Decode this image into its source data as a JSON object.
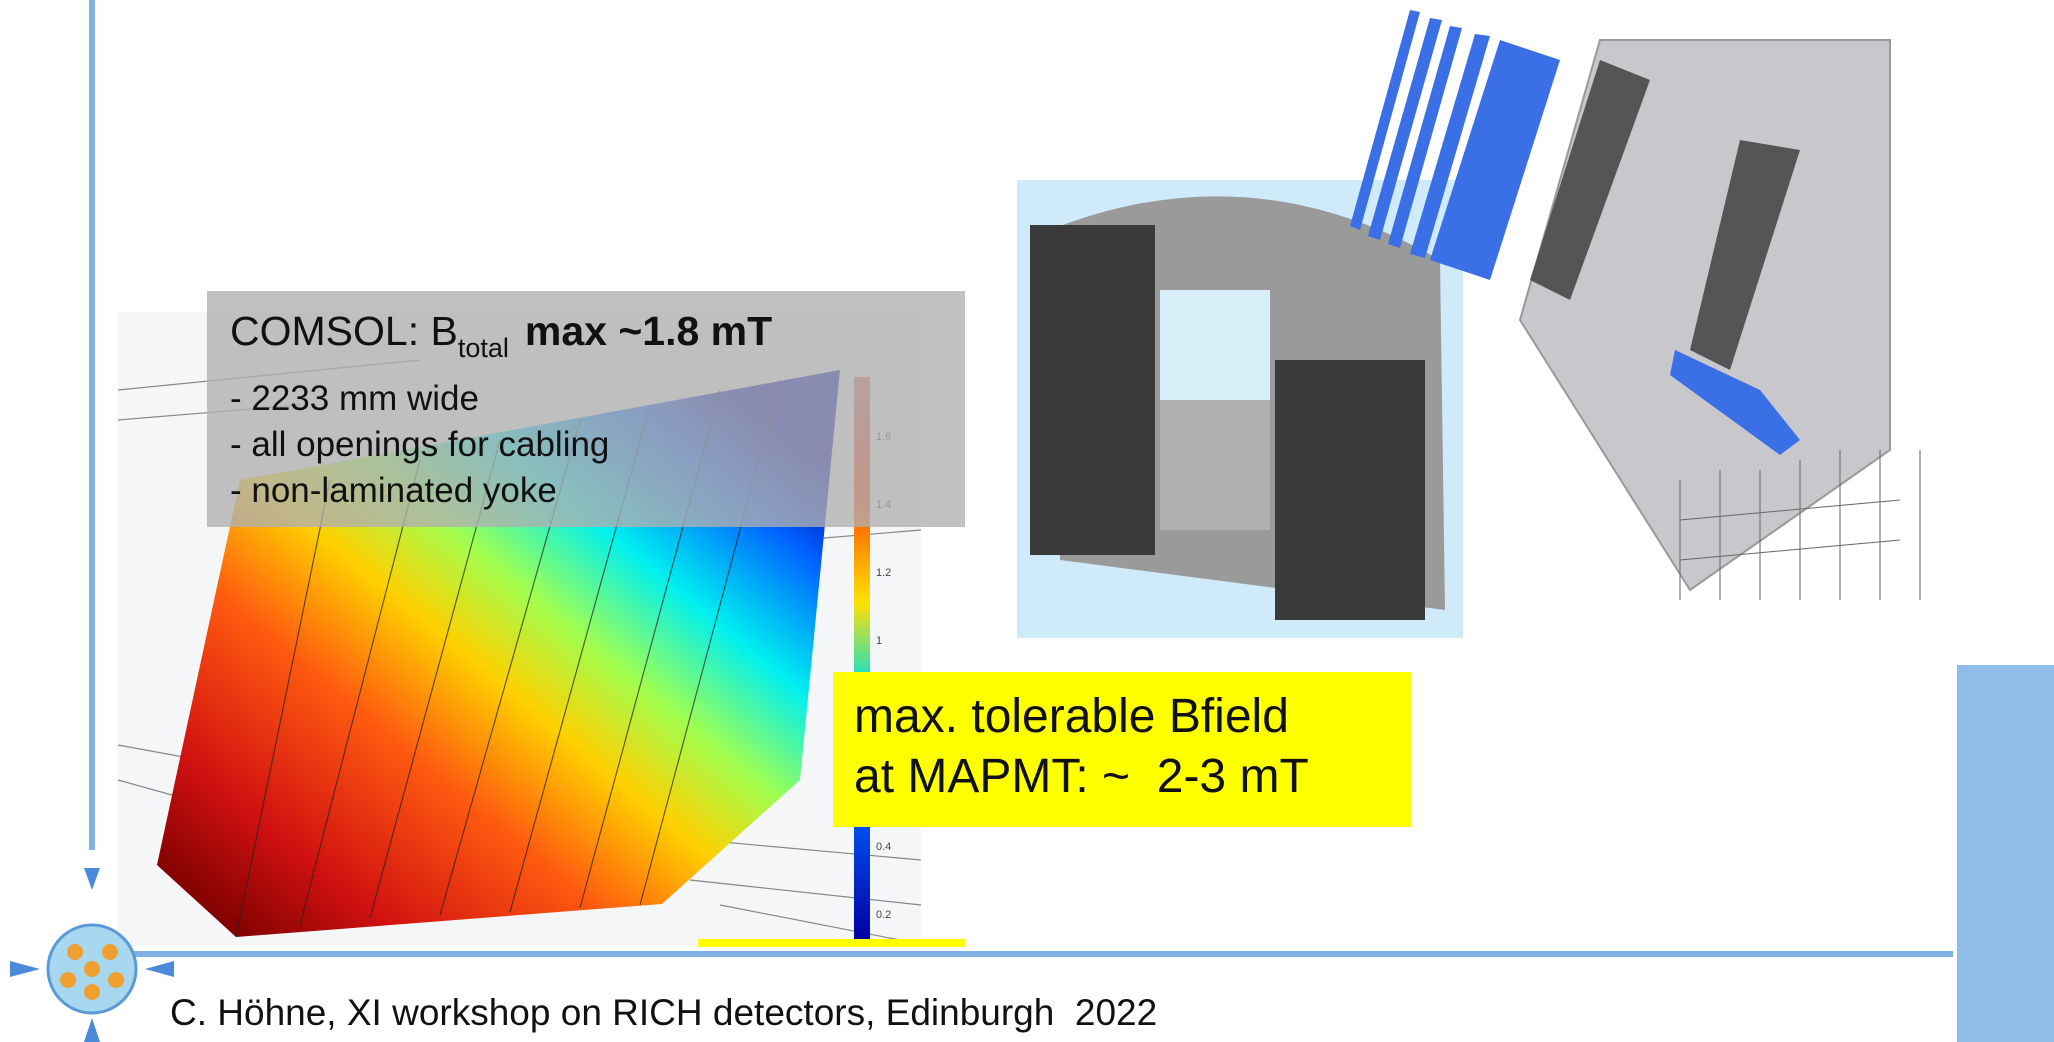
{
  "slide": {
    "comsol_label": {
      "prefix": "COMSOL: B",
      "subscript": "total",
      "emphasis": "max ~1.8 mT"
    },
    "bullets": [
      "- 2233 mm wide",
      "- all openings for cabling",
      "- non-laminated yoke"
    ],
    "highlight": {
      "lines": [
        "max. tolerable Bfield",
        "at MAPMT: ~  2-3 mT"
      ]
    },
    "colorbar_ticks": [
      "1.6",
      "1.4",
      "1.2",
      "1",
      "0.4",
      "0.2"
    ],
    "footer": "C. Höhne, XI workshop on RICH detectors, Edinburgh  2022"
  }
}
